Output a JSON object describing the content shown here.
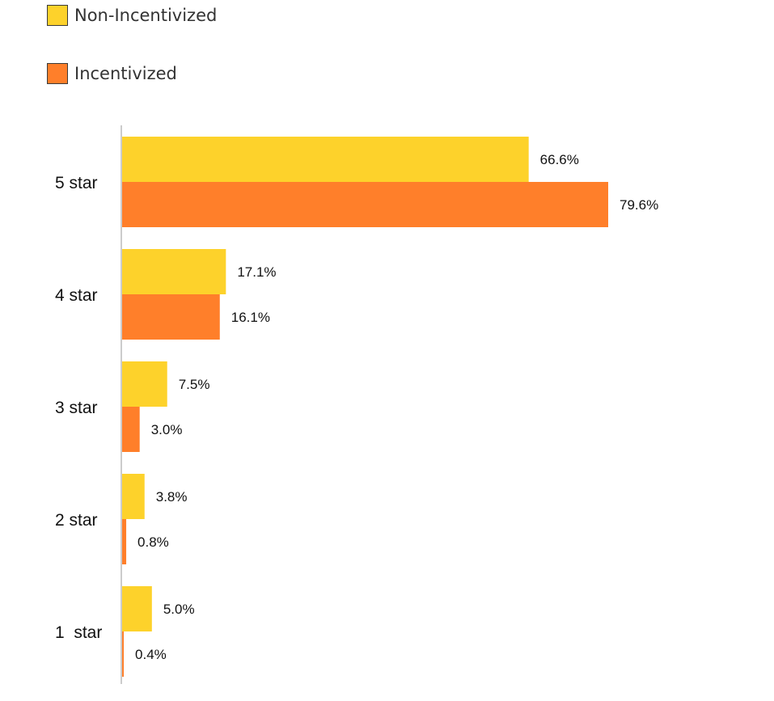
{
  "chart_data": {
    "type": "bar",
    "orientation": "horizontal",
    "categories": [
      "5 star",
      "4 star",
      "3 star",
      "2 star",
      "1  star"
    ],
    "series": [
      {
        "name": "Non-Incentivized",
        "color": "#FDD22B",
        "values": [
          66.6,
          17.1,
          7.5,
          3.8,
          5.0
        ],
        "labels": [
          "66.6%",
          "17.1%",
          "7.5%",
          "3.8%",
          "5.0%"
        ]
      },
      {
        "name": "Incentivized",
        "color": "#FF7F2A",
        "values": [
          79.6,
          16.1,
          3.0,
          0.8,
          0.4
        ],
        "labels": [
          "79.6%",
          "16.1%",
          "3.0%",
          "0.8%",
          "0.4%"
        ]
      }
    ],
    "xlim": [
      0,
      100
    ],
    "grid": false,
    "legend_position": "top-left",
    "title": "",
    "xlabel": "",
    "ylabel": ""
  }
}
